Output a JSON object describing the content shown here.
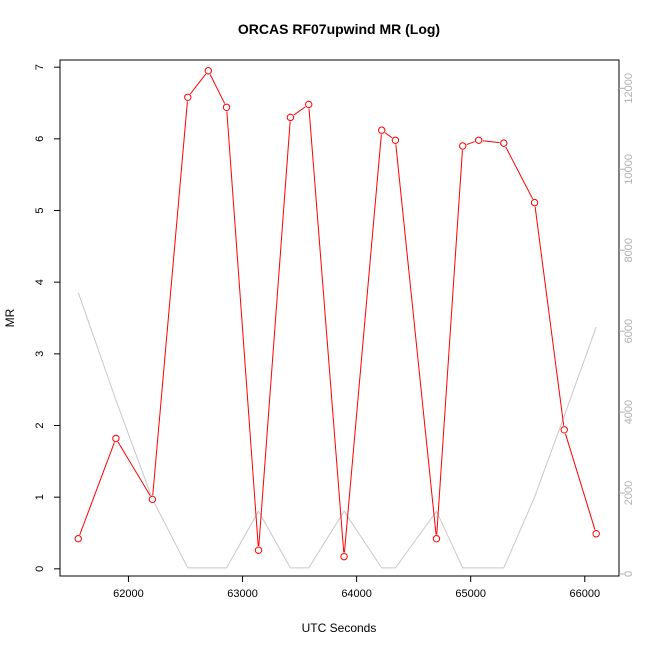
{
  "chart_data": {
    "type": "line",
    "title": "ORCAS RF07upwind MR (Log)",
    "xlabel": "UTC Seconds",
    "ylabel": "MR",
    "xlim": [
      61400,
      66300
    ],
    "ylim": [
      -0.1,
      7.1
    ],
    "y2lim": [
      -50,
      12700
    ],
    "x_ticks": [
      62000,
      63000,
      64000,
      65000,
      66000
    ],
    "y_ticks": [
      0,
      1,
      2,
      3,
      4,
      5,
      6,
      7
    ],
    "y2_ticks": [
      0,
      2000,
      4000,
      6000,
      8000,
      10000,
      12000
    ],
    "x_tick_labels": [
      "62000",
      "63000",
      "64000",
      "65000",
      "66000"
    ],
    "y_tick_labels": [
      "0",
      "1",
      "2",
      "3",
      "4",
      "5",
      "6",
      "7"
    ],
    "y2_tick_labels": [
      "0",
      "2000",
      "4000",
      "6000",
      "8000",
      "10000",
      "12000"
    ],
    "grid": false,
    "series": [
      {
        "axis": "left",
        "color": "#ff0000",
        "markers": true,
        "x": [
          61560,
          61890,
          62210,
          62520,
          62700,
          62860,
          63140,
          63420,
          63580,
          63890,
          64220,
          64340,
          64700,
          64930,
          65070,
          65290,
          65560,
          65820,
          66100
        ],
        "y": [
          0.42,
          1.82,
          0.97,
          6.58,
          6.95,
          6.44,
          0.26,
          6.3,
          6.48,
          0.17,
          6.12,
          5.98,
          0.42,
          5.9,
          5.98,
          5.94,
          5.11,
          1.94,
          0.49
        ]
      },
      {
        "axis": "right",
        "color": "#c8c8c8",
        "markers": false,
        "x": [
          61560,
          61890,
          62210,
          62520,
          62700,
          62860,
          63140,
          63420,
          63580,
          63890,
          64220,
          64340,
          64700,
          64930,
          65070,
          65290,
          65560,
          65820,
          66100
        ],
        "y": [
          6950,
          4300,
          1850,
          150,
          150,
          150,
          1550,
          150,
          150,
          1550,
          150,
          150,
          1550,
          150,
          150,
          150,
          1900,
          3900,
          6100
        ]
      }
    ]
  }
}
